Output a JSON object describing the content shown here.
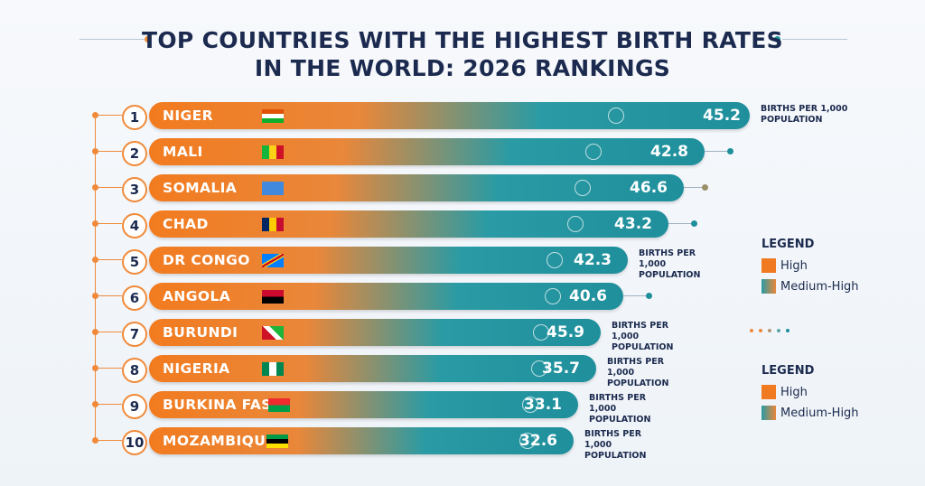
{
  "title": {
    "line1": "TOP COUNTRIES WITH THE HIGHEST BIRTH RATES",
    "line2": "IN THE WORLD: 2026 RANKINGS"
  },
  "rows": [
    {
      "rank": 1,
      "name": "NIGER",
      "value": 45.2,
      "unit": "BIRTHS PER 1,000 POPULATION"
    },
    {
      "rank": 2,
      "name": "MALI",
      "value": 42.8
    },
    {
      "rank": 3,
      "name": "SOMALIA",
      "value": 46.6
    },
    {
      "rank": 4,
      "name": "CHAD",
      "value": 43.2
    },
    {
      "rank": 5,
      "name": "DR CONGO",
      "value": 42.3,
      "unit": "BIRTHS PER 1,000 POPULATION"
    },
    {
      "rank": 6,
      "name": "ANGOLA",
      "value": 40.6
    },
    {
      "rank": 7,
      "name": "BURUNDI",
      "value": 45.9,
      "unit": "BIRTHS PER 1,000 POPULATION"
    },
    {
      "rank": 8,
      "name": "NIGERIA",
      "value": 35.7,
      "unit": "BIRTHS PER 1,000 POPULATION"
    },
    {
      "rank": 9,
      "name": "BURKINA FASO",
      "value": 33.1,
      "unit": "BIRTHS PER 1,000 POPULATION"
    },
    {
      "rank": 10,
      "name": "MOZAMBIQUE",
      "value": 32.6,
      "unit": "BIRTHS PER 1,000 POPULATION"
    }
  ],
  "legends": [
    {
      "title": "LEGEND",
      "items": [
        "High",
        "Medium-High"
      ]
    },
    {
      "title": "LEGEND",
      "items": [
        "High",
        "Medium-High"
      ]
    }
  ]
}
